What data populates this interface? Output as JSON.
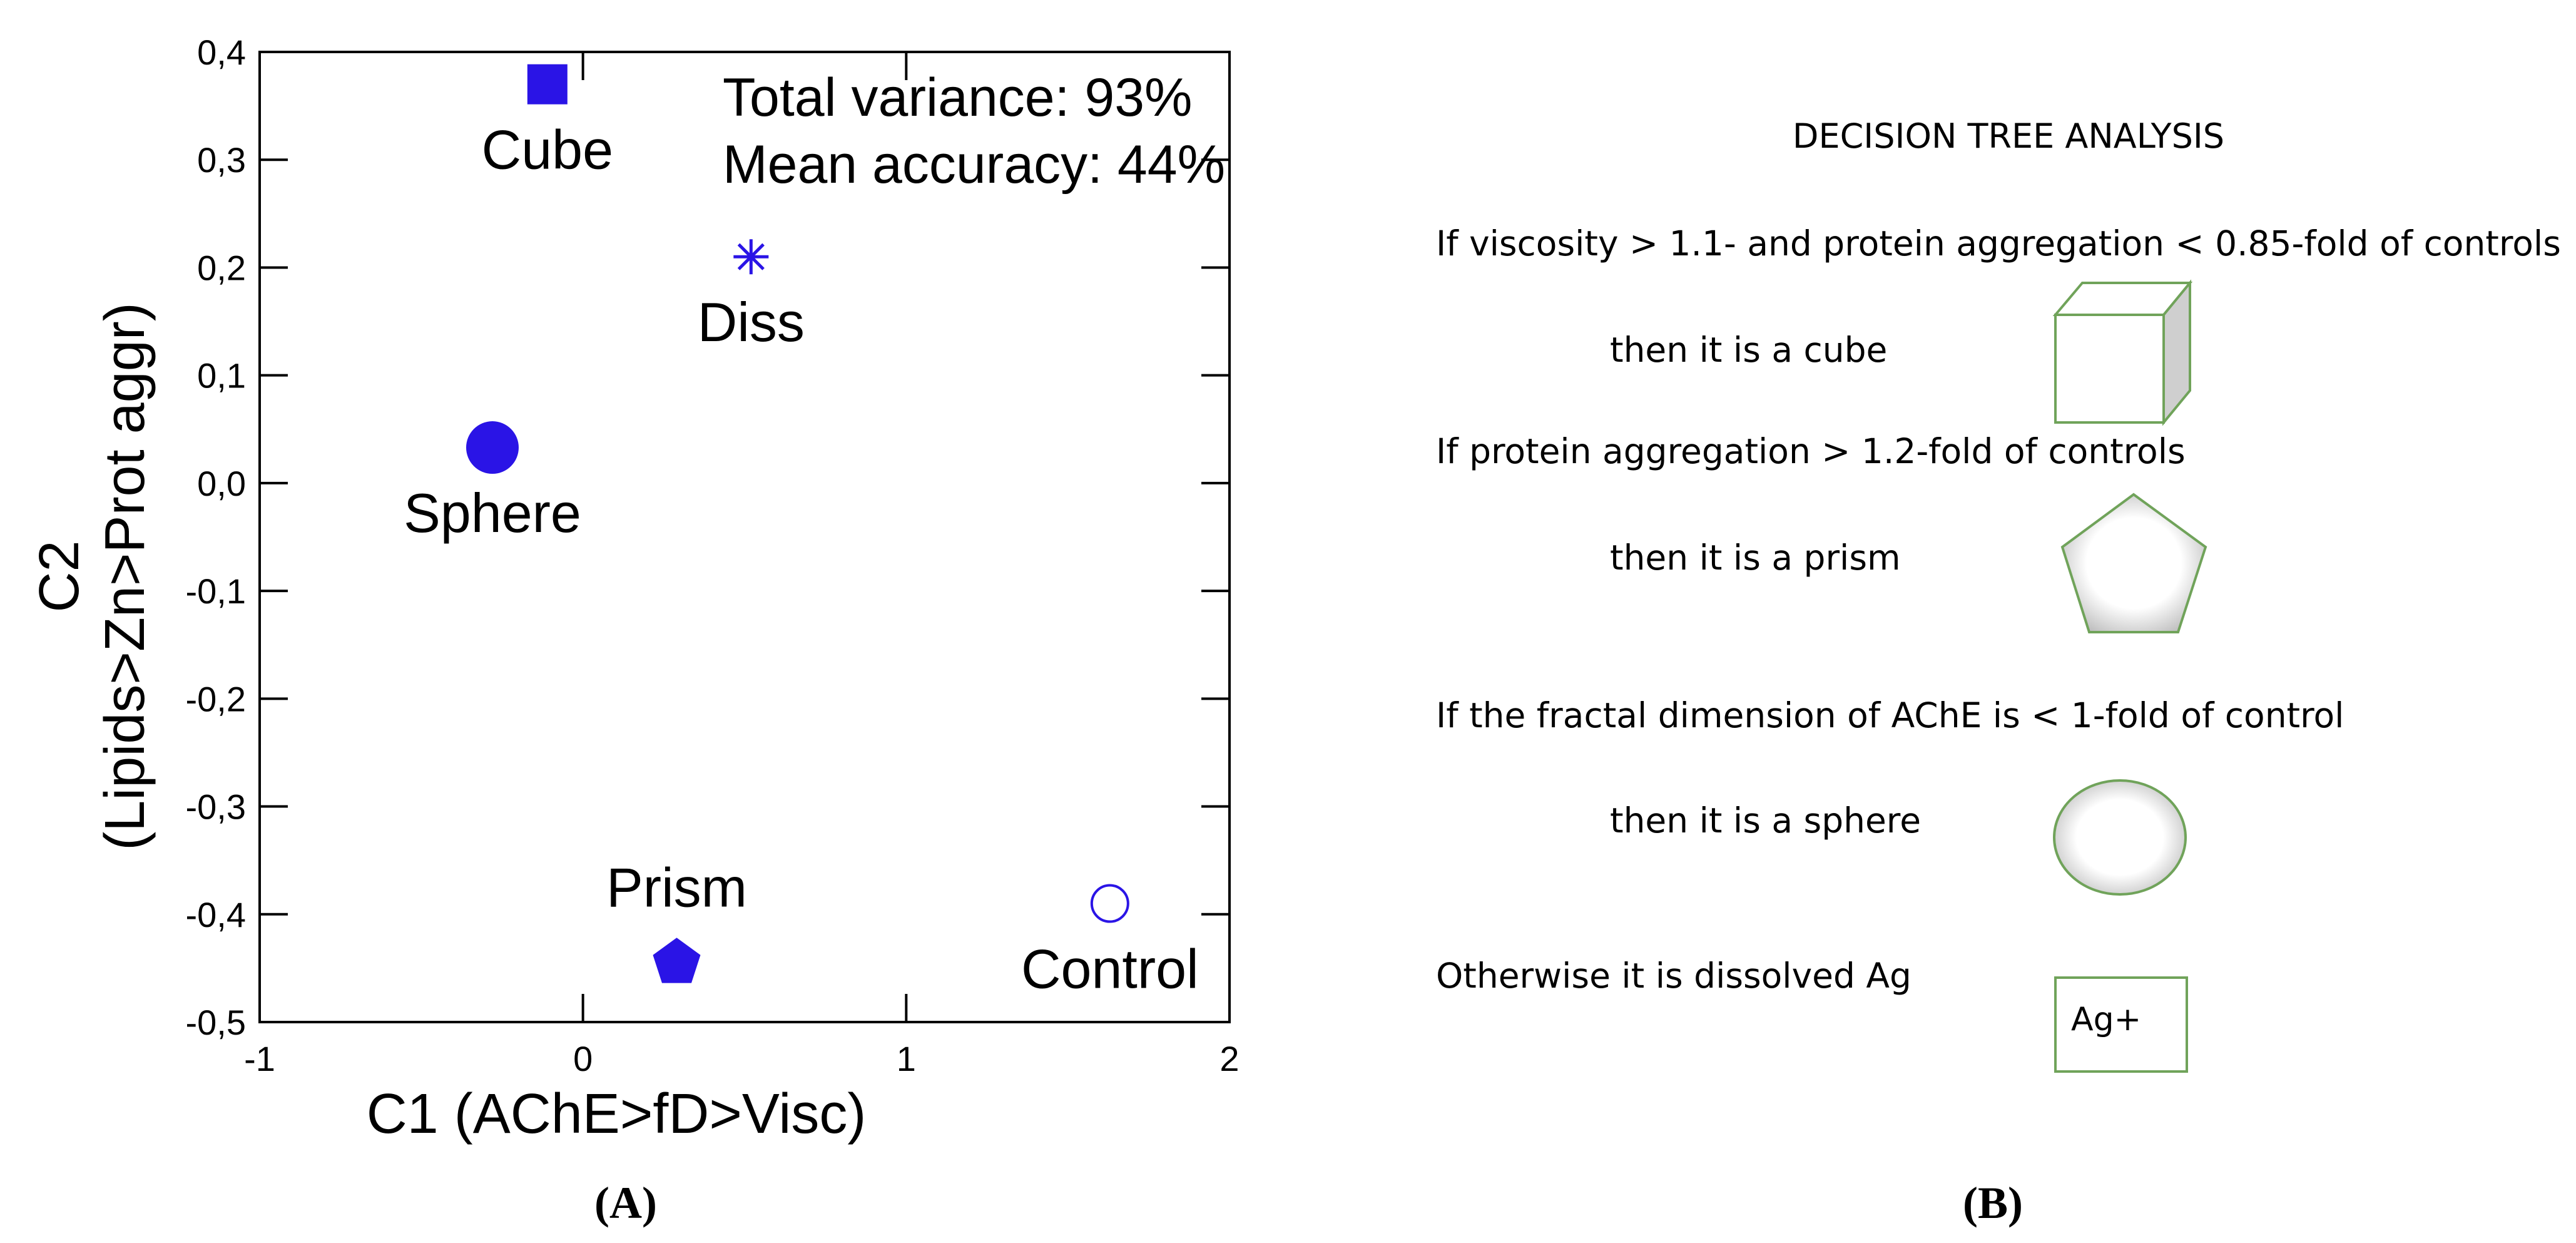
{
  "panel_a_label": "(A)",
  "panel_b_label": "(B)",
  "chart_data": {
    "type": "scatter",
    "title": "",
    "xlabel": "C1 (AChE>fD>Visc)",
    "ylabel_line1": "C2",
    "ylabel_line2": "(Lipids>Zn>Prot aggr)",
    "xlim": [
      -1,
      2
    ],
    "ylim": [
      -0.5,
      0.4
    ],
    "x_ticks": [
      {
        "value": -1,
        "label": "-1"
      },
      {
        "value": 0,
        "label": "0"
      },
      {
        "value": 1,
        "label": "1"
      },
      {
        "value": 2,
        "label": "2"
      }
    ],
    "y_ticks": [
      {
        "value": 0.4,
        "label": "0,4"
      },
      {
        "value": 0.3,
        "label": "0,3"
      },
      {
        "value": 0.2,
        "label": "0,2"
      },
      {
        "value": 0.1,
        "label": "0,1"
      },
      {
        "value": 0.0,
        "label": "0,0"
      },
      {
        "value": -0.1,
        "label": "-0,1"
      },
      {
        "value": -0.2,
        "label": "-0,2"
      },
      {
        "value": -0.3,
        "label": "-0,3"
      },
      {
        "value": -0.4,
        "label": "-0,4"
      },
      {
        "value": -0.5,
        "label": "-0,5"
      }
    ],
    "points": [
      {
        "name": "Cube",
        "x": -0.11,
        "y": 0.37,
        "marker": "square",
        "label_position": "below"
      },
      {
        "name": "Diss",
        "x": 0.52,
        "y": 0.21,
        "marker": "asterisk",
        "label_position": "below"
      },
      {
        "name": "Sphere",
        "x": -0.28,
        "y": 0.033,
        "marker": "circle",
        "label_position": "below"
      },
      {
        "name": "Prism",
        "x": 0.29,
        "y": -0.445,
        "marker": "pentagon",
        "label_position": "above"
      },
      {
        "name": "Control",
        "x": 1.63,
        "y": -0.39,
        "marker": "open-circle",
        "label_position": "below"
      }
    ],
    "annotations": [
      "Total variance: 93%",
      "Mean accuracy: 44%"
    ],
    "marker_color": "#2a14e6"
  },
  "decision_tree": {
    "title": "DECISION TREE ANALYSIS",
    "rules": [
      {
        "condition": "If viscosity > 1.1- and protein aggregation < 0.85-fold of controls",
        "result": "then it is a cube",
        "shape": "cube-icon"
      },
      {
        "condition": "If protein aggregation > 1.2-fold of controls",
        "result": "then it is a prism",
        "shape": "pentagon-icon"
      },
      {
        "condition": "If the fractal dimension of AChE is < 1-fold of control",
        "result": "then it is a sphere",
        "shape": "sphere-icon"
      },
      {
        "condition": "Otherwise it is dissolved Ag",
        "result": "",
        "shape": "ag-box-icon",
        "box_label": "Ag+"
      }
    ],
    "shape_stroke_color": "#70a35a"
  }
}
